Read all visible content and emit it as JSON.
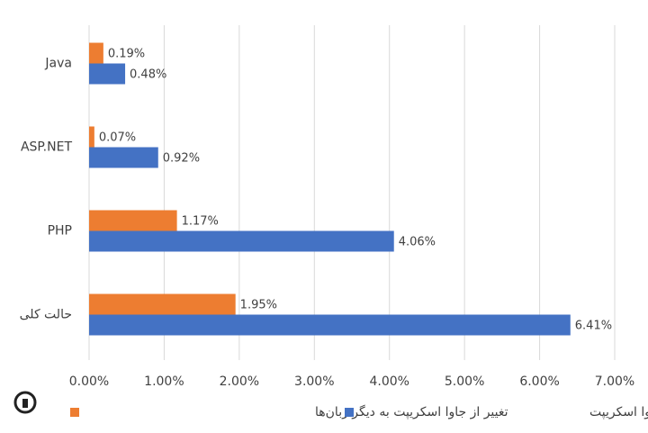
{
  "chart_data": {
    "type": "hbar",
    "categories": [
      "Java",
      "ASP.NET",
      "PHP",
      "حالت کلی"
    ],
    "series": [
      {
        "name": "تغییر از جاوا اسکریپت به دیگر زبان‌ها",
        "color": "#ed7d31",
        "values": [
          0.19,
          0.07,
          1.17,
          1.95
        ],
        "value_labels": [
          "0.19%",
          "0.07%",
          "1.17%",
          "1.95%"
        ]
      },
      {
        "name": "تغییر از دیگر زبان‌ها به جاوا اسکریپت",
        "color": "#4472c4",
        "values": [
          0.48,
          0.92,
          4.06,
          6.41
        ],
        "value_labels": [
          "0.48%",
          "0.92%",
          "4.06%",
          "6.41%"
        ]
      }
    ],
    "xlim": [
      0,
      7
    ],
    "xticks": [
      {
        "value": 0,
        "label": "0.00%"
      },
      {
        "value": 1,
        "label": "1.00%"
      },
      {
        "value": 2,
        "label": "2.00%"
      },
      {
        "value": 3,
        "label": "3.00%"
      },
      {
        "value": 4,
        "label": "4.00%"
      },
      {
        "value": 5,
        "label": "5.00%"
      },
      {
        "value": 6,
        "label": "6.00%"
      },
      {
        "value": 7,
        "label": "7.00%"
      }
    ],
    "grid": true,
    "legend": "bottom"
  }
}
